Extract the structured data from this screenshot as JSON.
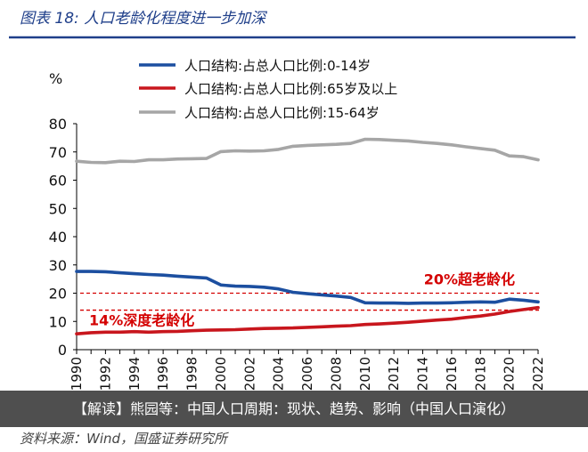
{
  "figure": {
    "title": "图表 18:  人口老龄化程度进一步加深",
    "source": "资料来源：Wind，国盛证券研究所",
    "overlay_caption": "【解读】熊园等：中国人口周期：现状、趋势、影响（中国人口演化）"
  },
  "chart_data": {
    "type": "line",
    "ylabel": "%",
    "xlabel": "",
    "ylim": [
      0,
      80
    ],
    "yticks": [
      0,
      10,
      20,
      30,
      40,
      50,
      60,
      70,
      80
    ],
    "x": [
      1990,
      1991,
      1992,
      1993,
      1994,
      1995,
      1996,
      1997,
      1998,
      1999,
      2000,
      2001,
      2002,
      2003,
      2004,
      2005,
      2006,
      2007,
      2008,
      2009,
      2010,
      2011,
      2012,
      2013,
      2014,
      2015,
      2016,
      2017,
      2018,
      2019,
      2020,
      2021,
      2022
    ],
    "xticks": [
      1990,
      1992,
      1994,
      1996,
      1998,
      2000,
      2002,
      2004,
      2006,
      2008,
      2010,
      2012,
      2014,
      2016,
      2018,
      2020,
      2022
    ],
    "legend_position": "top-center",
    "grid": false,
    "series": [
      {
        "name": "人口结构:占总人口比例:0-14岁",
        "color": "#1c4fa0",
        "values": [
          27.7,
          27.7,
          27.6,
          27.2,
          26.9,
          26.6,
          26.4,
          26.0,
          25.7,
          25.4,
          22.9,
          22.5,
          22.4,
          22.1,
          21.5,
          20.3,
          19.8,
          19.4,
          19.0,
          18.5,
          16.6,
          16.5,
          16.5,
          16.4,
          16.5,
          16.5,
          16.6,
          16.8,
          16.9,
          16.8,
          17.9,
          17.5,
          16.9
        ]
      },
      {
        "name": "人口结构:占总人口比例:65岁及以上",
        "color": "#c8161d",
        "values": [
          5.6,
          6.0,
          6.2,
          6.2,
          6.4,
          6.2,
          6.4,
          6.5,
          6.7,
          6.9,
          7.0,
          7.1,
          7.3,
          7.5,
          7.6,
          7.7,
          7.9,
          8.1,
          8.3,
          8.5,
          8.9,
          9.1,
          9.4,
          9.7,
          10.1,
          10.5,
          10.8,
          11.4,
          11.9,
          12.6,
          13.5,
          14.2,
          14.9
        ]
      },
      {
        "name": "人口结构:占总人口比例:15-64岁",
        "color": "#a6a6a6",
        "values": [
          66.7,
          66.3,
          66.2,
          66.7,
          66.6,
          67.2,
          67.2,
          67.5,
          67.6,
          67.7,
          70.1,
          70.4,
          70.3,
          70.4,
          70.9,
          72.0,
          72.3,
          72.5,
          72.7,
          73.0,
          74.5,
          74.4,
          74.1,
          73.9,
          73.4,
          73.0,
          72.5,
          71.8,
          71.2,
          70.6,
          68.6,
          68.3,
          67.2
        ]
      }
    ],
    "reference_lines": [
      {
        "label": "20%超老龄化",
        "value": 20,
        "color": "#d40000"
      },
      {
        "label": "14%深度老龄化",
        "value": 14,
        "color": "#d40000"
      }
    ]
  }
}
